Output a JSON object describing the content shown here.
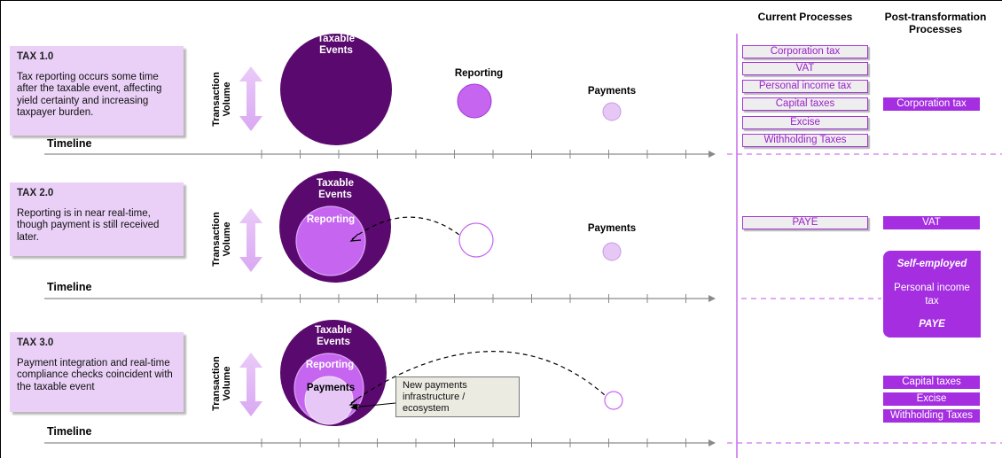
{
  "header": {
    "current_processes": "Current Processes",
    "post_transformation_line1": "Post-transformation",
    "post_transformation_line2": "Processes"
  },
  "rows": [
    {
      "id": "tax1",
      "title": "TAX 1.0",
      "description": "Tax reporting occurs some time after the taxable event, affecting yield certainty and increasing taxpayer burden.",
      "axis_label_line1": "Transaction",
      "axis_label_line2": "Volume",
      "timeline_label": "Timeline",
      "taxable_events_line1": "Taxable",
      "taxable_events_line2": "Events",
      "reporting_label": "Reporting",
      "payments_label": "Payments"
    },
    {
      "id": "tax2",
      "title": "TAX 2.0",
      "description": "Reporting is in near real-time, though payment is still received later.",
      "axis_label_line1": "Transaction",
      "axis_label_line2": "Volume",
      "timeline_label": "Timeline",
      "taxable_events_line1": "Taxable",
      "taxable_events_line2": "Events",
      "reporting_label": "Reporting",
      "payments_label": "Payments"
    },
    {
      "id": "tax3",
      "title": "TAX 3.0",
      "description": "Payment integration and real-time compliance checks coincident with the taxable event",
      "axis_label_line1": "Transaction",
      "axis_label_line2": "Volume",
      "timeline_label": "Timeline",
      "taxable_events_line1": "Taxable",
      "taxable_events_line2": "Events",
      "reporting_label": "Reporting",
      "payments_label": "Payments",
      "callout": "New payments infrastructure / ecosystem"
    }
  ],
  "current_processes": {
    "tax1": [
      "Corporation tax",
      "VAT",
      "Personal income tax",
      "Capital taxes",
      "Excise",
      "Withholding Taxes"
    ],
    "tax2": [
      "PAYE"
    ]
  },
  "post_transformation": {
    "corporation_tax": "Corporation tax",
    "vat": "VAT",
    "self_employed": "Self-employed",
    "personal_income_tax": "Personal income tax",
    "paye": "PAYE",
    "tax3": [
      "Capital taxes",
      "Excise",
      "Withholding Taxes"
    ]
  },
  "colors": {
    "dark_purple": "#5a0a6e",
    "reporting_purple": "#c665f0",
    "light_lilac": "#e6c7f5",
    "box_fill": "#ead0f7",
    "accent": "#a42ee0"
  }
}
